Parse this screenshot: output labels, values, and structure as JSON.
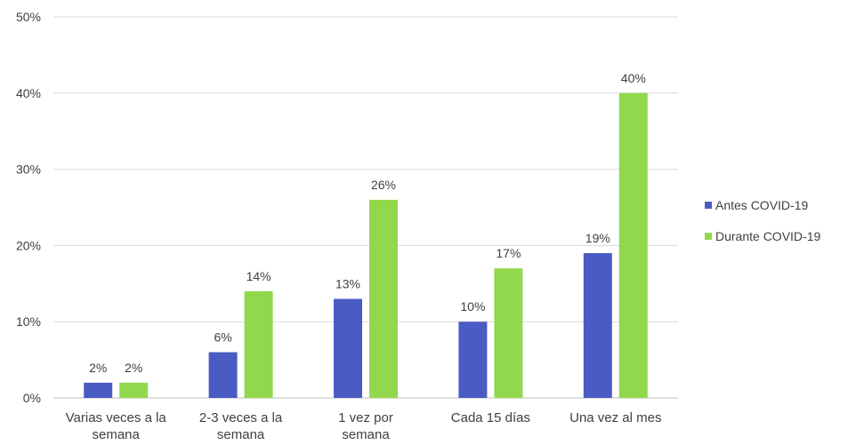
{
  "chart_data": {
    "type": "bar",
    "categories": [
      [
        "Varias veces a la",
        "semana"
      ],
      [
        "2-3 veces a la",
        "semana"
      ],
      [
        "1 vez por",
        "semana"
      ],
      [
        "Cada 15 días"
      ],
      [
        "Una vez al mes"
      ]
    ],
    "series": [
      {
        "name": "Antes COVID-19",
        "color": "#4a5bc4",
        "values": [
          2,
          6,
          13,
          10,
          19
        ],
        "labels": [
          "2%",
          "6%",
          "13%",
          "10%",
          "19%"
        ]
      },
      {
        "name": "Durante COVID-19",
        "color": "#92d84c",
        "values": [
          2,
          14,
          26,
          17,
          40
        ],
        "labels": [
          "2%",
          "14%",
          "26%",
          "17%",
          "40%"
        ]
      }
    ],
    "yticks": [
      "0%",
      "10%",
      "20%",
      "30%",
      "40%",
      "50%"
    ],
    "ylim": [
      0,
      50
    ],
    "grid": true,
    "legend_position": "right"
  }
}
